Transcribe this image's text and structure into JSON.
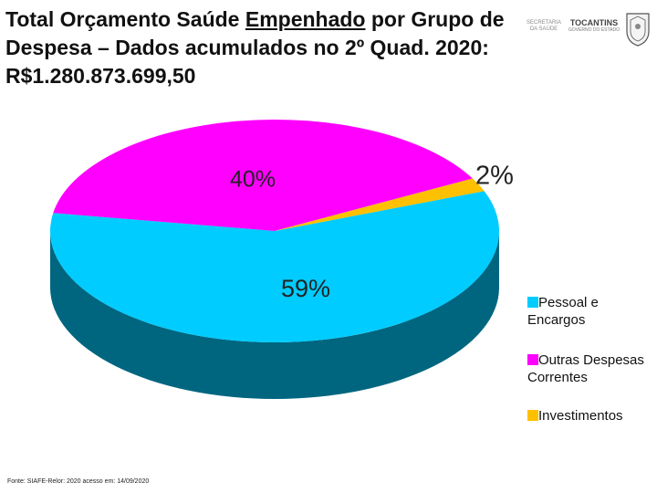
{
  "title": {
    "part1": "Total Orçamento Saúde ",
    "underlined": "Empenhado",
    "part2": " por Grupo de Despesa – Dados acumulados no 2º Quad. 2020: R$1.280.873.699,50"
  },
  "logos": {
    "secretaria": "SECRETARIA DA SAÚDE",
    "tocantins": "TOCANTINS",
    "governo": "GOVERNO DO ESTADO"
  },
  "chart_data": {
    "type": "pie",
    "title": "Total Orçamento Saúde Empenhado por Grupo de Despesa – Dados acumulados no 2º Quad. 2020: R$1.280.873.699,50",
    "categories": [
      "Pessoal e Encargos",
      "Outras Despesas Correntes",
      "Investimentos"
    ],
    "values": [
      59,
      40,
      2
    ],
    "value_labels": [
      "59%",
      "40%",
      "2%"
    ],
    "colors": [
      "#00CCFF",
      "#FF00FF",
      "#FFC000"
    ],
    "side_colors": [
      "#006680",
      "#8A008A",
      "#B38600"
    ],
    "legend_position": "right",
    "style": "3d-pie"
  },
  "legend": {
    "line1": [
      "Pessoal e",
      "Outras Despesas",
      "Investimentos"
    ],
    "line2": [
      "Encargos",
      "Correntes",
      ""
    ]
  },
  "source": "Fonte: SIAFE-Relor: 2020 acesso em: 14/09/2020"
}
